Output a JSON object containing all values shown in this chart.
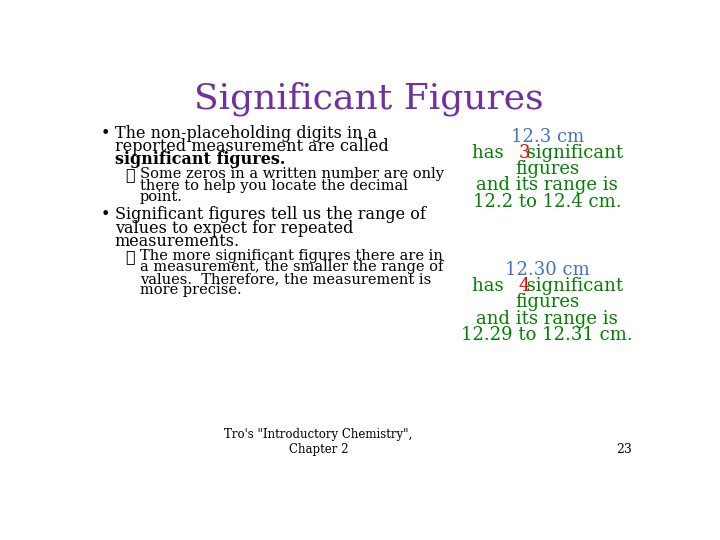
{
  "title": "Significant Figures",
  "title_color": "#7030A0",
  "background_color": "#FFFFFF",
  "bullet1_line1": "The non-placeholding digits in a",
  "bullet1_line2": "reported measurement are called",
  "bullet1_bold": "significant figures",
  "check1_line1": "Some zeros in a written number are only",
  "check1_line2": "there to help you locate the decimal",
  "check1_line3": "point.",
  "bullet2_line1": "Significant figures tell us the range of",
  "bullet2_line2": "values to expect for repeated",
  "bullet2_line3": "measurements.",
  "check2_line1": "The more significant figures there are in",
  "check2_line2": "a measurement, the smaller the range of",
  "check2_line3": "values.  Therefore, the measurement is",
  "check2_line4": "more precise.",
  "box1_line1": "12.3 cm",
  "box1_line2_pre": "has ",
  "box1_line2_num": "3",
  "box1_line2_post": " significant",
  "box1_line3": "figures",
  "box1_line4": "and its range is",
  "box1_line5": "12.2 to 12.4 cm.",
  "box2_line1": "12.30 cm",
  "box2_line2_pre": "has ",
  "box2_line2_num": "4",
  "box2_line2_post": " significant",
  "box2_line3": "figures",
  "box2_line4": "and its range is",
  "box2_line5": "12.29 to 12.31 cm.",
  "box_text_color": "#008000",
  "box_num_color": "#FF0000",
  "box_first_line_color": "#4472C4",
  "footer_text": "Tro's \"Introductory Chemistry\",\nChapter 2",
  "footer_page": "23",
  "text_color": "#000000",
  "font_family": "DejaVu Serif"
}
